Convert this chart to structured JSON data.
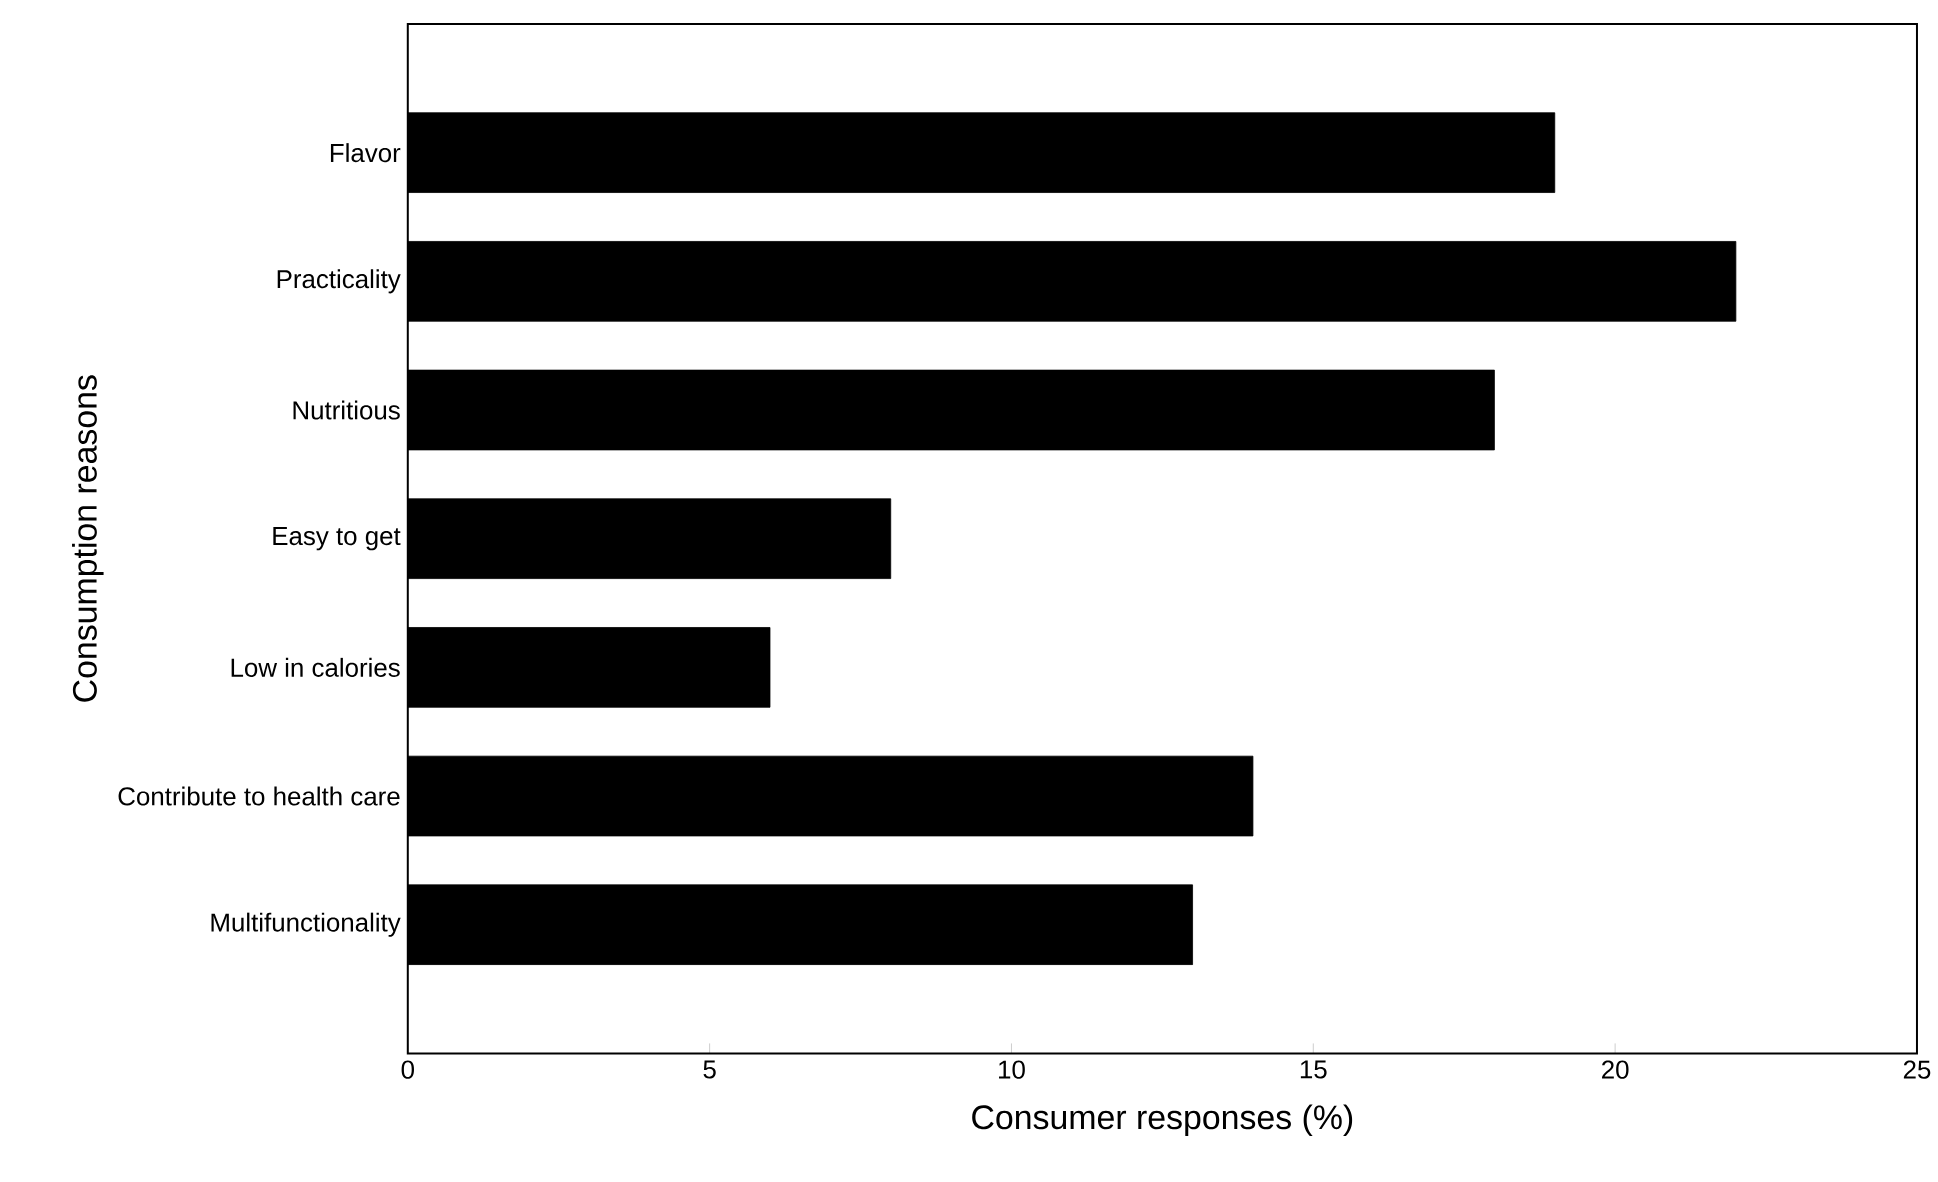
{
  "chart_data": {
    "type": "bar",
    "orientation": "horizontal",
    "xlabel": "Consumer responses (%)",
    "ylabel": "Consumption reasons",
    "categories": [
      "Flavor",
      "Practicality",
      "Nutritious",
      "Easy to get",
      "Low in calories",
      "Contribute to health care",
      "Multifunctionality"
    ],
    "values": [
      19,
      22,
      18,
      8,
      6,
      14,
      13
    ],
    "color": "#000000",
    "xlim": [
      0,
      25
    ],
    "xticks": [
      0,
      5,
      10,
      15,
      20,
      25
    ],
    "grid": false
  }
}
